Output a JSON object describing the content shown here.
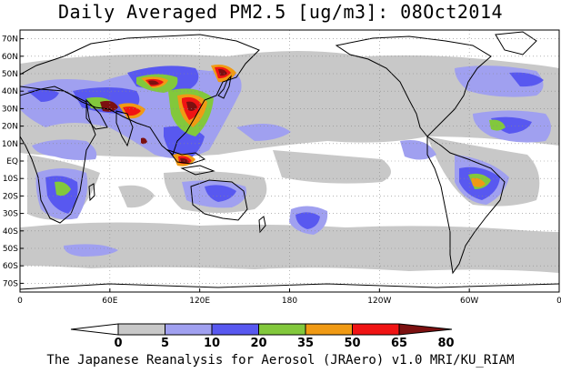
{
  "map": {
    "title": "Daily Averaged PM2.5 [ug/m3]: 08Oct2014",
    "credit": "The Japanese Reanalysis for Aerosol (JRAero) v1.0 MRI/KU_RIAM",
    "lon_range": [
      0,
      360
    ],
    "lat_range": [
      -75,
      75
    ],
    "lat_ticks": [
      {
        "v": 70,
        "label": "70N"
      },
      {
        "v": 60,
        "label": "60N"
      },
      {
        "v": 50,
        "label": "50N"
      },
      {
        "v": 40,
        "label": "40N"
      },
      {
        "v": 30,
        "label": "30N"
      },
      {
        "v": 20,
        "label": "20N"
      },
      {
        "v": 10,
        "label": "10N"
      },
      {
        "v": 0,
        "label": "EQ"
      },
      {
        "v": -10,
        "label": "10S"
      },
      {
        "v": -20,
        "label": "20S"
      },
      {
        "v": -30,
        "label": "30S"
      },
      {
        "v": -40,
        "label": "40S"
      },
      {
        "v": -50,
        "label": "50S"
      },
      {
        "v": -60,
        "label": "60S"
      },
      {
        "v": -70,
        "label": "70S"
      }
    ],
    "lon_ticks": [
      {
        "v": 0,
        "label": "0"
      },
      {
        "v": 60,
        "label": "60E"
      },
      {
        "v": 120,
        "label": "120E"
      },
      {
        "v": 180,
        "label": "180"
      },
      {
        "v": 240,
        "label": "120W"
      },
      {
        "v": 300,
        "label": "60W"
      },
      {
        "v": 360,
        "label": "0"
      }
    ]
  },
  "colorbar": {
    "levels": [
      "0",
      "5",
      "10",
      "20",
      "35",
      "50",
      "65",
      "80"
    ],
    "colors": [
      "#ffffff",
      "#c8c8c8",
      "#a0a0f0",
      "#5858f0",
      "#82c83c",
      "#f09a14",
      "#f01414",
      "#7c1010"
    ]
  }
}
